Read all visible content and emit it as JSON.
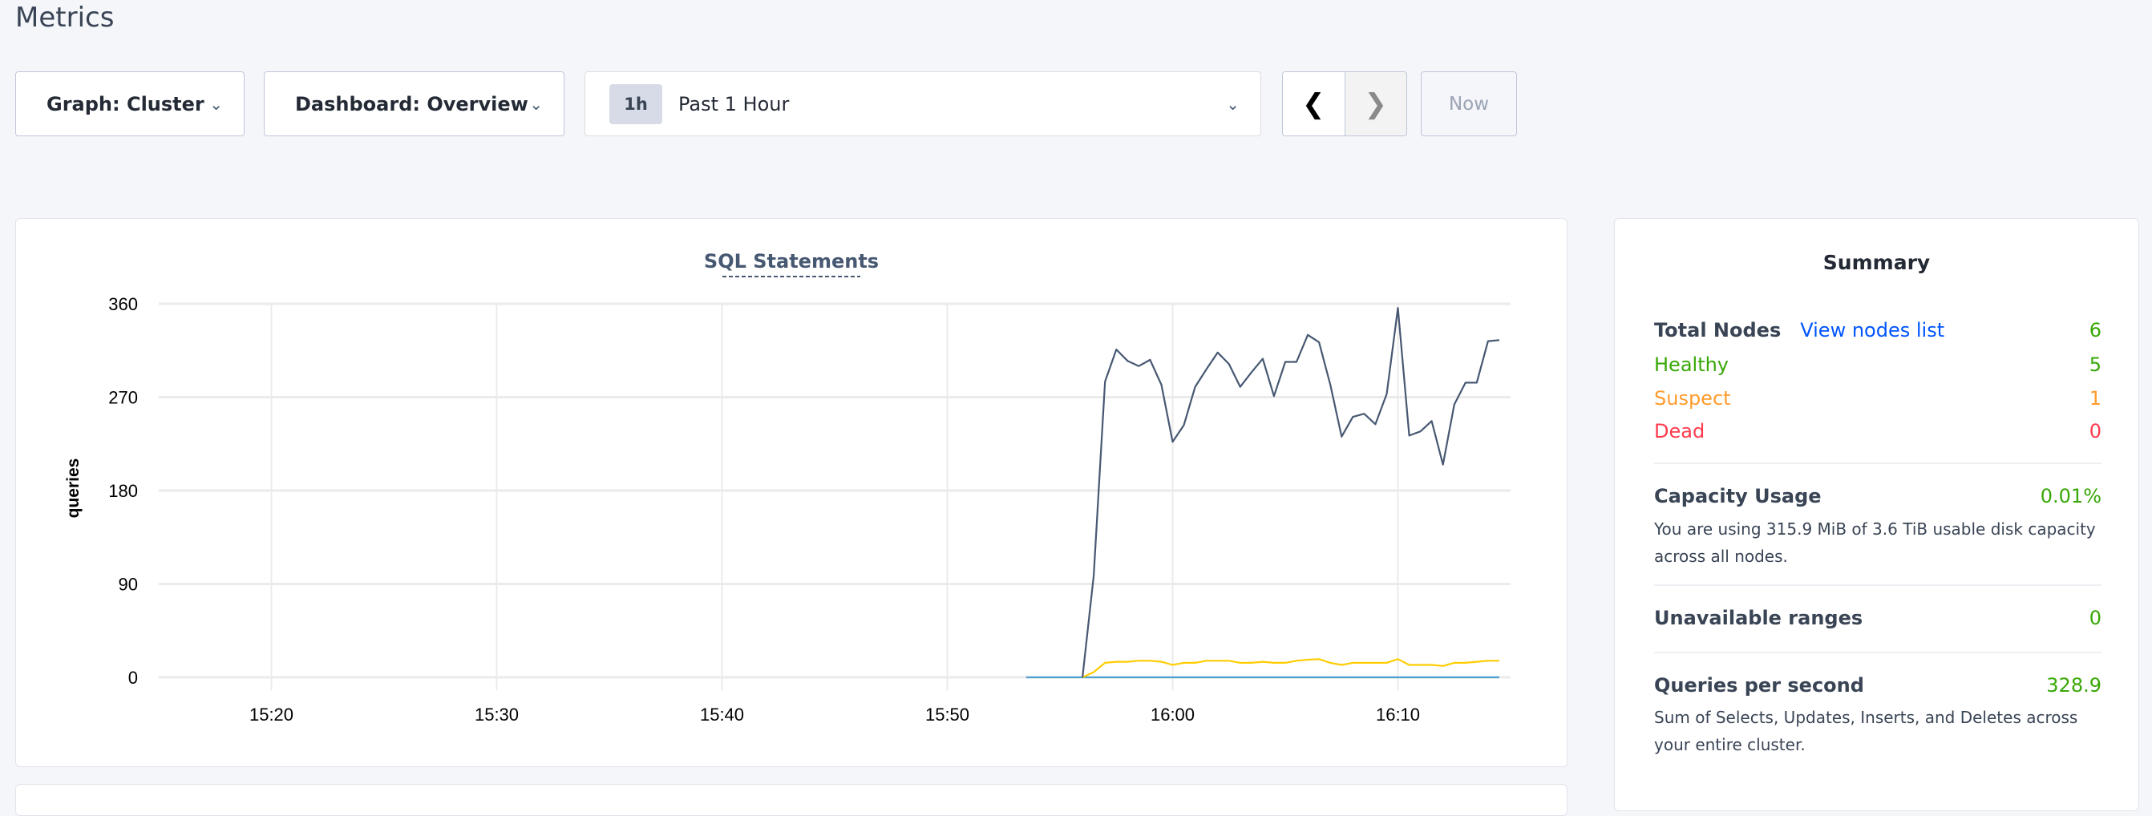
{
  "page": {
    "title": "Metrics"
  },
  "toolbar": {
    "graph_label": "Graph: Cluster",
    "dashboard_label": "Dashboard: Overview",
    "time_badge": "1h",
    "time_label": "Past 1 Hour",
    "prev_icon": "chevron-left",
    "next_icon": "chevron-right",
    "now_label": "Now"
  },
  "chart_data": {
    "type": "line",
    "title": "SQL Statements",
    "ylabel": "queries",
    "xlabel": "",
    "ylim": [
      0,
      360
    ],
    "yticks": [
      "0",
      "90",
      "180",
      "270",
      "360"
    ],
    "xlim": [
      "15:15",
      "16:15"
    ],
    "xticks": [
      "15:20",
      "15:30",
      "15:40",
      "15:50",
      "16:00",
      "16:10"
    ],
    "grid": true,
    "legend": "none",
    "x": [
      "15:56:00",
      "15:56:30",
      "15:57:00",
      "15:57:30",
      "15:58:00",
      "15:58:30",
      "15:59:00",
      "15:59:30",
      "16:00:00",
      "16:00:30",
      "16:01:00",
      "16:01:30",
      "16:02:00",
      "16:02:30",
      "16:03:00",
      "16:03:30",
      "16:04:00",
      "16:04:30",
      "16:05:00",
      "16:05:30",
      "16:06:00",
      "16:06:30",
      "16:07:00",
      "16:07:30",
      "16:08:00",
      "16:08:30",
      "16:09:00",
      "16:09:30",
      "16:10:00",
      "16:10:30",
      "16:11:00",
      "16:11:30",
      "16:12:00",
      "16:12:30",
      "16:13:00",
      "16:13:30",
      "16:14:00",
      "16:14:30"
    ],
    "series": [
      {
        "color": "#475872",
        "values": [
          0,
          98,
          285,
          316,
          305,
          300,
          306,
          282,
          227,
          243,
          280,
          297,
          313,
          302,
          280,
          294,
          307,
          271,
          304,
          304,
          330,
          323,
          282,
          232,
          251,
          254,
          244,
          273,
          356,
          233,
          237,
          247,
          205,
          263,
          284,
          284,
          324,
          325
        ]
      },
      {
        "color": "#ffcd02",
        "values": [
          0,
          5,
          14,
          15,
          15,
          16,
          16,
          15,
          12,
          14,
          14,
          16,
          16,
          16,
          14,
          14,
          15,
          14,
          14,
          16,
          17,
          17.5,
          14,
          12,
          14,
          14,
          14,
          14,
          17.5,
          12,
          12,
          12,
          11,
          14,
          14,
          15,
          16,
          16
        ]
      },
      {
        "color": "#4e9fd1",
        "x": [
          "15:53:30",
          "16:14:30"
        ],
        "values": [
          0,
          0
        ]
      }
    ]
  },
  "summary": {
    "title": "Summary",
    "total_nodes_label": "Total Nodes",
    "view_nodes_link": "View nodes list",
    "total_nodes": "6",
    "healthy_label": "Healthy",
    "healthy": "5",
    "suspect_label": "Suspect",
    "suspect": "1",
    "dead_label": "Dead",
    "dead": "0",
    "capacity_label": "Capacity Usage",
    "capacity": "0.01%",
    "capacity_desc": "You are using 315.9 MiB of 3.6 TiB usable disk capacity across all nodes.",
    "unavailable_label": "Unavailable ranges",
    "unavailable": "0",
    "qps_label": "Queries per second",
    "qps": "328.9",
    "qps_desc": "Sum of Selects, Updates, Inserts, and Deletes across your entire cluster."
  },
  "colors": {
    "healthy": "#37a806",
    "suspect": "#ff9b2b",
    "dead": "#ff3b4e",
    "link": "#0055ff"
  }
}
